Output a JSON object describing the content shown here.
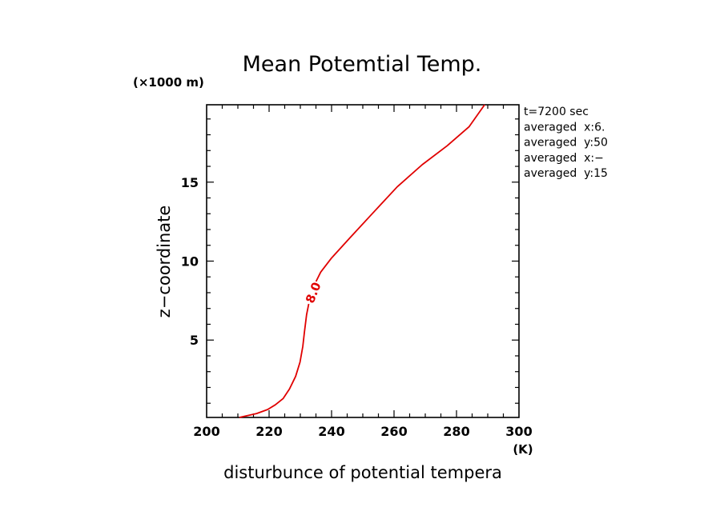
{
  "chart_data": {
    "type": "line",
    "title": "Mean Potemtial Temp.",
    "xlabel": "disturbunce of potential tempera",
    "ylabel": "z−coordinate",
    "x_unit": "(K)",
    "y_unit": "(×1000 m)",
    "xlim": [
      200,
      300
    ],
    "ylim": [
      0.1,
      19.9
    ],
    "x_ticks": [
      200,
      220,
      240,
      260,
      280,
      300
    ],
    "x_tick_labels": [
      "200",
      "220",
      "240",
      "260",
      "280",
      "300"
    ],
    "y_ticks": [
      5,
      10,
      15
    ],
    "y_tick_labels": [
      "5",
      "10",
      "15"
    ],
    "grid": false,
    "series": [
      {
        "label": "8.0",
        "color": "#e00000",
        "x": [
          210.5,
          216,
          219.5,
          222,
          224.5,
          226.5,
          228.5,
          229.9,
          230.8,
          231.3,
          232,
          233,
          234.5,
          236.5,
          240,
          246,
          253,
          261,
          269,
          277,
          284,
          289
        ],
        "y": [
          0.1,
          0.35,
          0.6,
          0.9,
          1.3,
          1.9,
          2.7,
          3.6,
          4.6,
          5.5,
          6.6,
          7.6,
          8.5,
          9.3,
          10.2,
          11.5,
          13.0,
          14.7,
          16.1,
          17.3,
          18.5,
          19.9
        ]
      }
    ],
    "annotations": {
      "curve_label": "8.0",
      "info_lines": [
        "t=7200 sec",
        "averaged  x:6.",
        "averaged  y:50",
        "averaged  x:−",
        "averaged  y:15"
      ]
    }
  }
}
